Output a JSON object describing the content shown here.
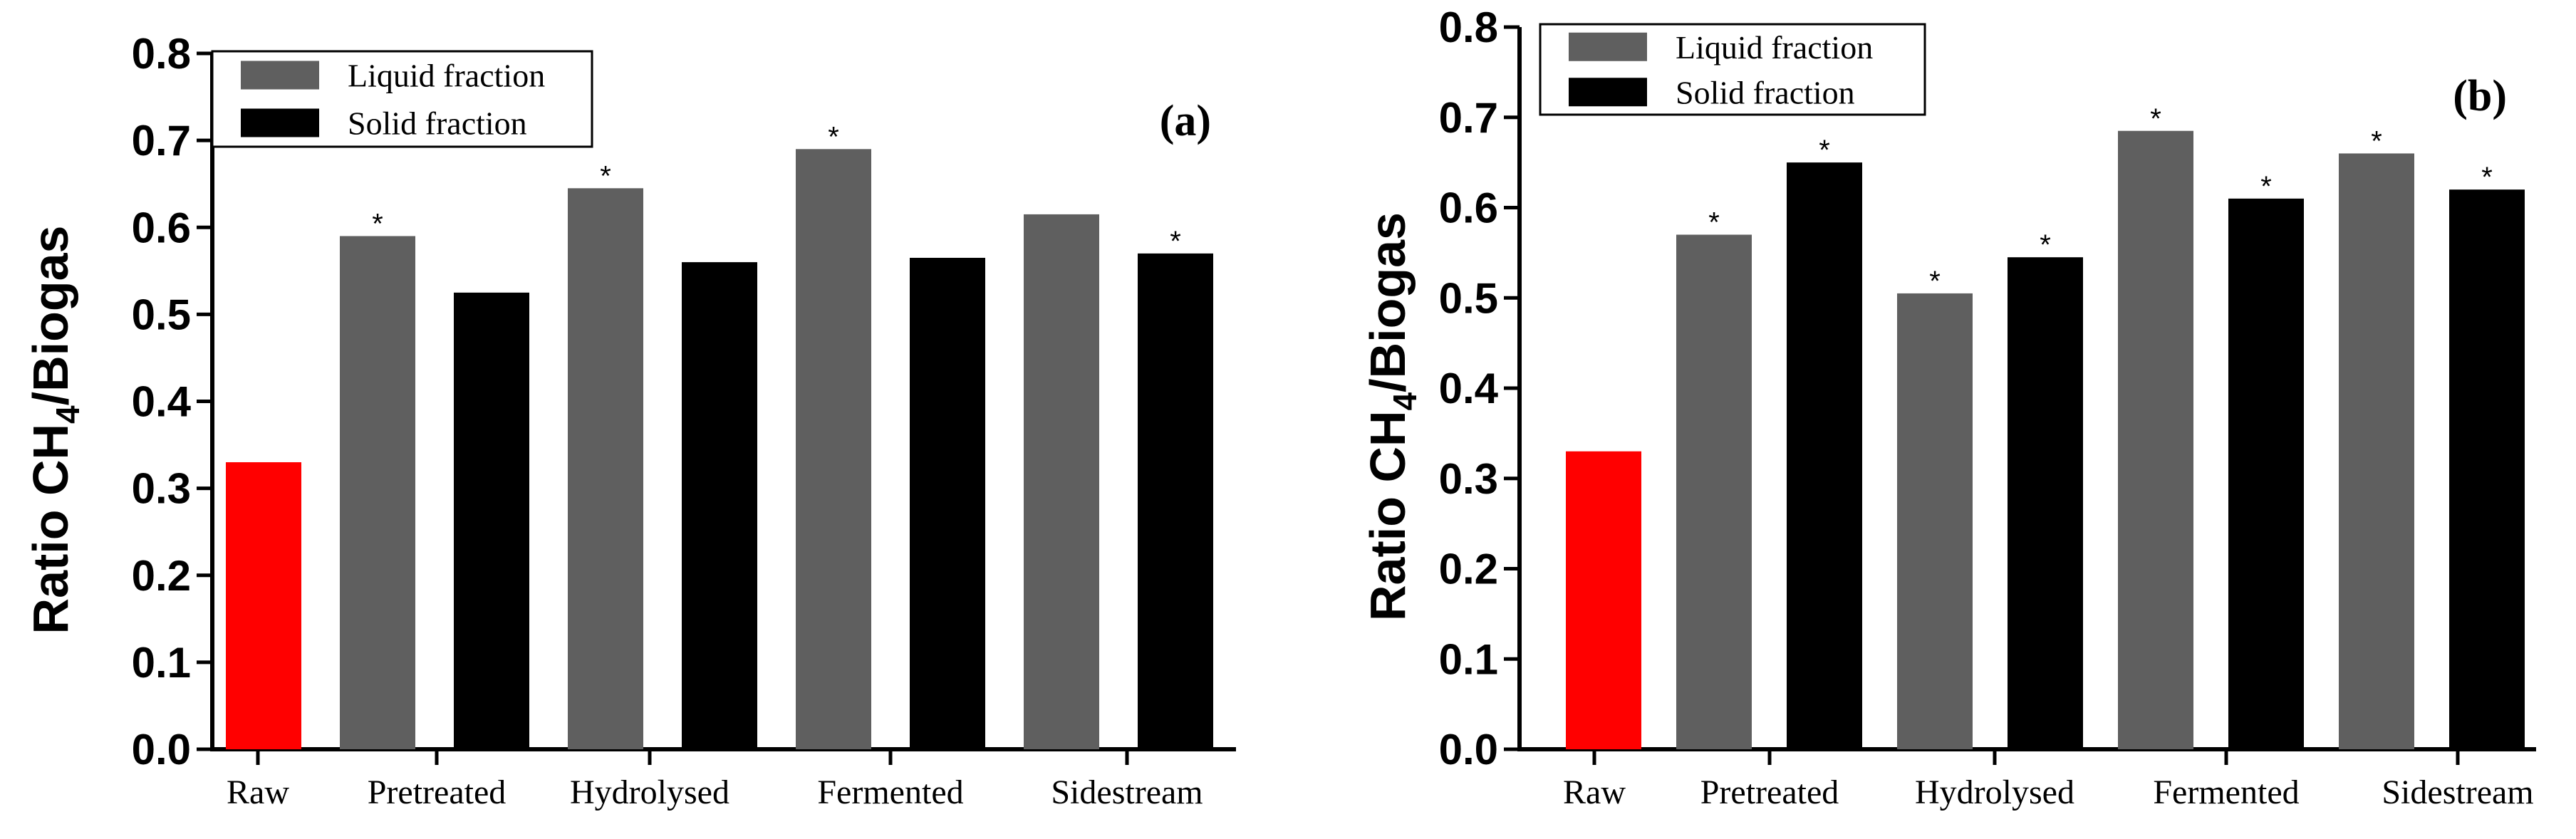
{
  "colors": {
    "raw": "#ff0000",
    "liquid": "#5f5f5f",
    "solid": "#000000",
    "axis": "#000000"
  },
  "chart_data": [
    {
      "type": "bar",
      "panel_label": "(a)",
      "ylabel": {
        "prefix": "Ratio CH",
        "sub": "4",
        "suffix": "/Biogas"
      },
      "ylim": [
        0,
        0.8
      ],
      "yticks": [
        "0.0",
        "0.1",
        "0.2",
        "0.3",
        "0.4",
        "0.5",
        "0.6",
        "0.7",
        "0.8"
      ],
      "legend": {
        "placement": "top-left",
        "entries": [
          "Liquid fraction",
          "Solid fraction"
        ]
      },
      "categories": [
        "Raw",
        "Pretreated",
        "Hydrolysed",
        "Fermented",
        "Sidestream"
      ],
      "bars": [
        {
          "name": "Raw",
          "series": "raw",
          "value": 0.33,
          "significant": false
        },
        {
          "name": "Pretreated liquid",
          "series": "liquid",
          "value": 0.59,
          "significant": true
        },
        {
          "name": "Pretreated solid",
          "series": "solid",
          "value": 0.525,
          "significant": false
        },
        {
          "name": "Hydrolysed liquid",
          "series": "liquid",
          "value": 0.645,
          "significant": true
        },
        {
          "name": "Hydrolysed solid",
          "series": "solid",
          "value": 0.56,
          "significant": false
        },
        {
          "name": "Fermented liquid",
          "series": "liquid",
          "value": 0.69,
          "significant": true
        },
        {
          "name": "Fermented solid",
          "series": "solid",
          "value": 0.565,
          "significant": false
        },
        {
          "name": "Sidestream liquid",
          "series": "liquid",
          "value": 0.615,
          "significant": false
        },
        {
          "name": "Sidestream solid",
          "series": "solid",
          "value": 0.57,
          "significant": true
        }
      ],
      "significance_marker": "*"
    },
    {
      "type": "bar",
      "panel_label": "(b)",
      "ylabel": {
        "prefix": "Ratio CH",
        "sub": "4",
        "suffix": "/Biogas"
      },
      "ylim": [
        0,
        0.8
      ],
      "yticks": [
        "0.0",
        "0.1",
        "0.2",
        "0.3",
        "0.4",
        "0.5",
        "0.6",
        "0.7",
        "0.8"
      ],
      "legend": {
        "placement": "top-left",
        "entries": [
          "Liquid fraction",
          "Solid fraction"
        ]
      },
      "categories": [
        "Raw",
        "Pretreated",
        "Hydrolysed",
        "Fermented",
        "Sidestream"
      ],
      "bars": [
        {
          "name": "Raw",
          "series": "raw",
          "value": 0.33,
          "significant": false
        },
        {
          "name": "Pretreated liquid",
          "series": "liquid",
          "value": 0.57,
          "significant": true
        },
        {
          "name": "Pretreated solid",
          "series": "solid",
          "value": 0.65,
          "significant": true
        },
        {
          "name": "Hydrolysed liquid",
          "series": "liquid",
          "value": 0.505,
          "significant": true
        },
        {
          "name": "Hydrolysed solid",
          "series": "solid",
          "value": 0.545,
          "significant": true
        },
        {
          "name": "Fermented liquid",
          "series": "liquid",
          "value": 0.685,
          "significant": true
        },
        {
          "name": "Fermented solid",
          "series": "solid",
          "value": 0.61,
          "significant": true
        },
        {
          "name": "Sidestream liquid",
          "series": "liquid",
          "value": 0.66,
          "significant": true
        },
        {
          "name": "Sidestream solid",
          "series": "solid",
          "value": 0.62,
          "significant": true
        }
      ],
      "significance_marker": "*"
    }
  ]
}
